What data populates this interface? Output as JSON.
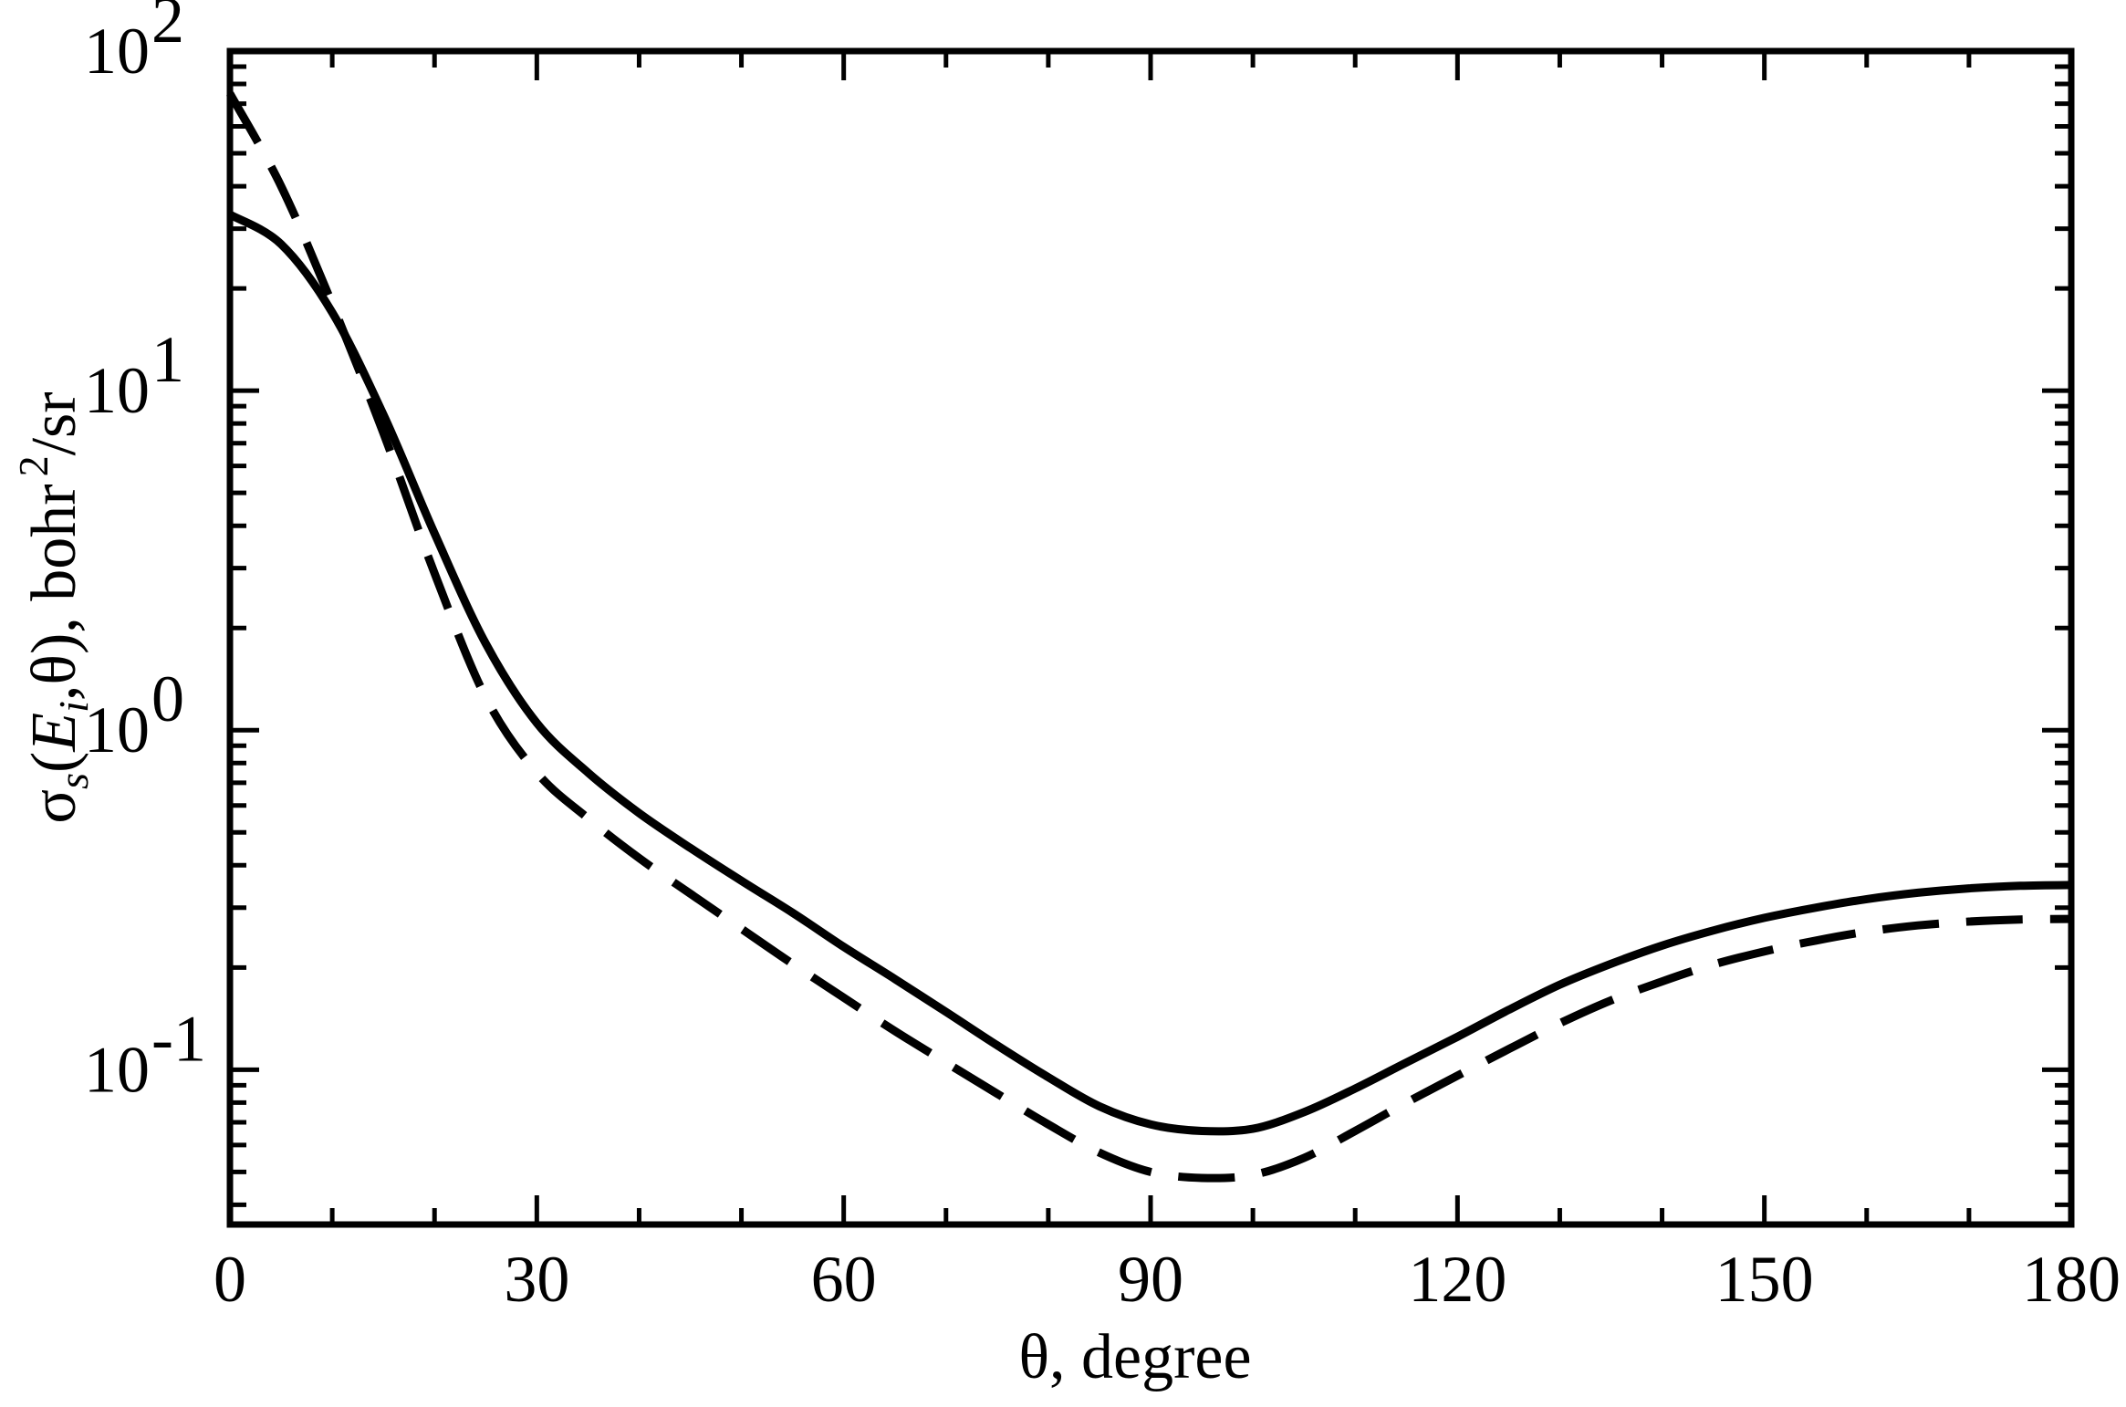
{
  "chart_data": {
    "type": "line",
    "xlabel": "θ, degree",
    "ylabel_parts": {
      "sigma": "σ",
      "sigma_sub": "s",
      "open": "(",
      "E": "E",
      "E_sub": "i",
      "rest": ",θ), bohr",
      "sup": "2",
      "unit_tail": "/sr"
    },
    "xlim": [
      0,
      180
    ],
    "ylim": [
      0.035,
      100
    ],
    "yscale": "log",
    "x_ticks": [
      "0",
      "30",
      "60",
      "90",
      "120",
      "150",
      "180"
    ],
    "y_ticks": [
      {
        "value": 0.1,
        "base": "10",
        "exp": "-1"
      },
      {
        "value": 1,
        "base": "10",
        "exp": "0"
      },
      {
        "value": 10,
        "base": "10",
        "exp": "1"
      },
      {
        "value": 100,
        "base": "10",
        "exp": "2"
      }
    ],
    "grid": false,
    "legend": "none",
    "series": [
      {
        "style": "solid",
        "color": "#000000",
        "x": [
          0,
          5,
          10,
          15,
          20,
          25,
          30,
          35,
          40,
          45,
          50,
          55,
          60,
          65,
          70,
          75,
          80,
          85,
          90,
          95,
          100,
          105,
          110,
          115,
          120,
          125,
          130,
          135,
          140,
          145,
          150,
          155,
          160,
          165,
          170,
          175,
          180
        ],
        "y": [
          33,
          27,
          17,
          8.5,
          3.8,
          1.8,
          1.05,
          0.75,
          0.57,
          0.45,
          0.36,
          0.29,
          0.23,
          0.185,
          0.148,
          0.118,
          0.095,
          0.078,
          0.069,
          0.066,
          0.067,
          0.075,
          0.088,
          0.105,
          0.125,
          0.15,
          0.178,
          0.205,
          0.232,
          0.257,
          0.28,
          0.3,
          0.318,
          0.332,
          0.342,
          0.348,
          0.35
        ]
      },
      {
        "style": "dashed",
        "color": "#000000",
        "x": [
          0,
          5,
          10,
          15,
          20,
          25,
          30,
          35,
          40,
          45,
          50,
          55,
          60,
          65,
          70,
          75,
          80,
          85,
          90,
          95,
          100,
          105,
          110,
          115,
          120,
          125,
          130,
          135,
          140,
          145,
          150,
          155,
          160,
          165,
          170,
          175,
          180
        ],
        "y": [
          75,
          40,
          18,
          7.5,
          2.9,
          1.25,
          0.75,
          0.55,
          0.42,
          0.33,
          0.26,
          0.205,
          0.163,
          0.13,
          0.105,
          0.085,
          0.069,
          0.057,
          0.05,
          0.048,
          0.049,
          0.055,
          0.066,
          0.08,
          0.096,
          0.115,
          0.137,
          0.16,
          0.182,
          0.204,
          0.223,
          0.24,
          0.255,
          0.266,
          0.273,
          0.277,
          0.278
        ]
      }
    ]
  }
}
